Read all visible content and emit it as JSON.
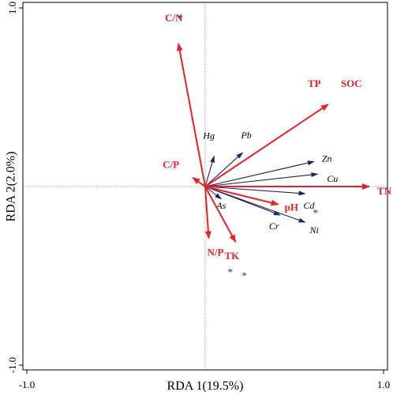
{
  "chart_data": {
    "type": "scatter",
    "subtype": "rda-biplot",
    "xlabel": "RDA 1(19.5%)",
    "ylabel": "RDA 2(2.0%)",
    "xlim": [
      -1.0,
      1.0
    ],
    "ylim": [
      -1.0,
      1.0
    ],
    "x_tick_labels": [
      "-1.0",
      "1.0"
    ],
    "y_tick_labels": [
      "1.0",
      "-1.0"
    ],
    "grid": false,
    "reference_lines": "dotted lines at x=0 and y=0",
    "env_arrow_color": "#e8202a",
    "species_arrow_color": "#1a2460",
    "environmental_factors": [
      {
        "name": "C/N",
        "x": -0.15,
        "y": 0.8,
        "significant": true,
        "star": "*"
      },
      {
        "name": "TP",
        "x": 0.69,
        "y": 0.46,
        "significant": false,
        "star": ""
      },
      {
        "name": "SOC",
        "x": 0.69,
        "y": 0.46,
        "significant": false,
        "star": ""
      },
      {
        "name": "C/P",
        "x": -0.07,
        "y": 0.05,
        "significant": false,
        "star": ""
      },
      {
        "name": "TN",
        "x": 0.92,
        "y": 0.0,
        "significant": true,
        "star": "*"
      },
      {
        "name": "pH",
        "x": 0.41,
        "y": -0.1,
        "significant": true,
        "star": "*"
      },
      {
        "name": "N/P",
        "x": 0.02,
        "y": -0.29,
        "significant": true,
        "star": "*"
      },
      {
        "name": "TK",
        "x": 0.17,
        "y": -0.31,
        "significant": true,
        "star": "*"
      }
    ],
    "species": [
      {
        "name": "Hg",
        "x": 0.05,
        "y": 0.17
      },
      {
        "name": "Pb",
        "x": 0.21,
        "y": 0.19
      },
      {
        "name": "Zn",
        "x": 0.61,
        "y": 0.14
      },
      {
        "name": "Cu",
        "x": 0.63,
        "y": 0.07
      },
      {
        "name": "Cd",
        "x": 0.56,
        "y": -0.04
      },
      {
        "name": "As",
        "x": 0.09,
        "y": -0.07
      },
      {
        "name": "Cr",
        "x": 0.42,
        "y": -0.16
      },
      {
        "name": "Ni",
        "x": 0.56,
        "y": -0.2
      }
    ]
  }
}
